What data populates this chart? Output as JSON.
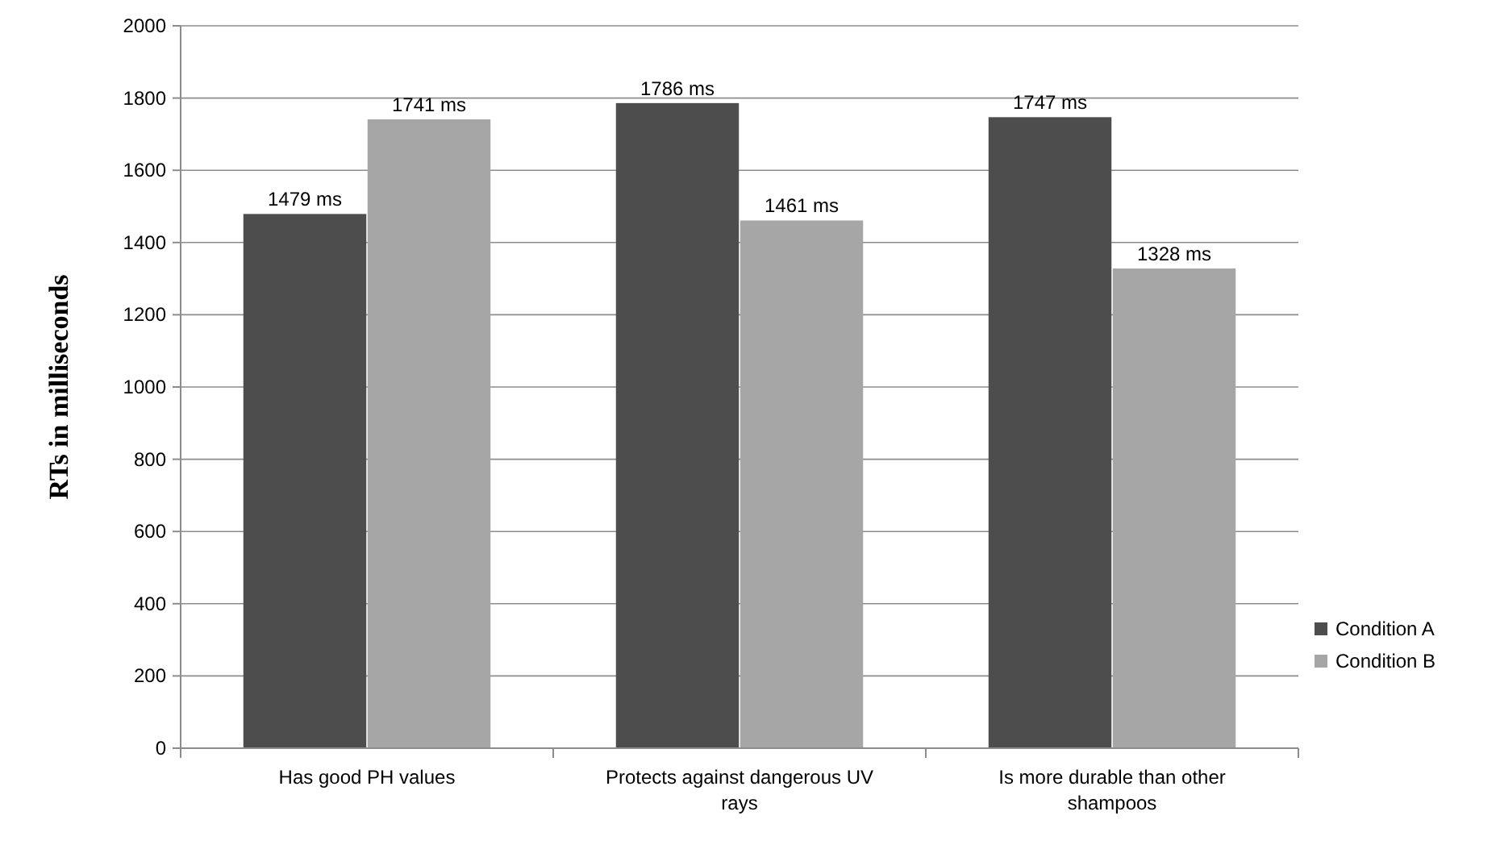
{
  "chart_data": {
    "type": "bar",
    "ylabel": "RTs in milliseconds",
    "categories": [
      "Has good PH values",
      "Protects against dangerous UV rays",
      "Is more durable than other shampoos"
    ],
    "series": [
      {
        "name": "Condition A",
        "color": "#4d4d4d",
        "values": [
          1479,
          1786,
          1747
        ],
        "value_labels": [
          "1479 ms",
          "1786 ms",
          "1747 ms"
        ]
      },
      {
        "name": "Condition B",
        "color": "#a6a6a6",
        "values": [
          1741,
          1461,
          1328
        ],
        "value_labels": [
          "1741 ms",
          "1461 ms",
          "1328 ms"
        ]
      }
    ],
    "ylim": [
      0,
      2000
    ],
    "yticks": [
      0,
      200,
      400,
      600,
      800,
      1000,
      1200,
      1400,
      1600,
      1800,
      2000
    ],
    "grid": "y",
    "legend": "right"
  }
}
